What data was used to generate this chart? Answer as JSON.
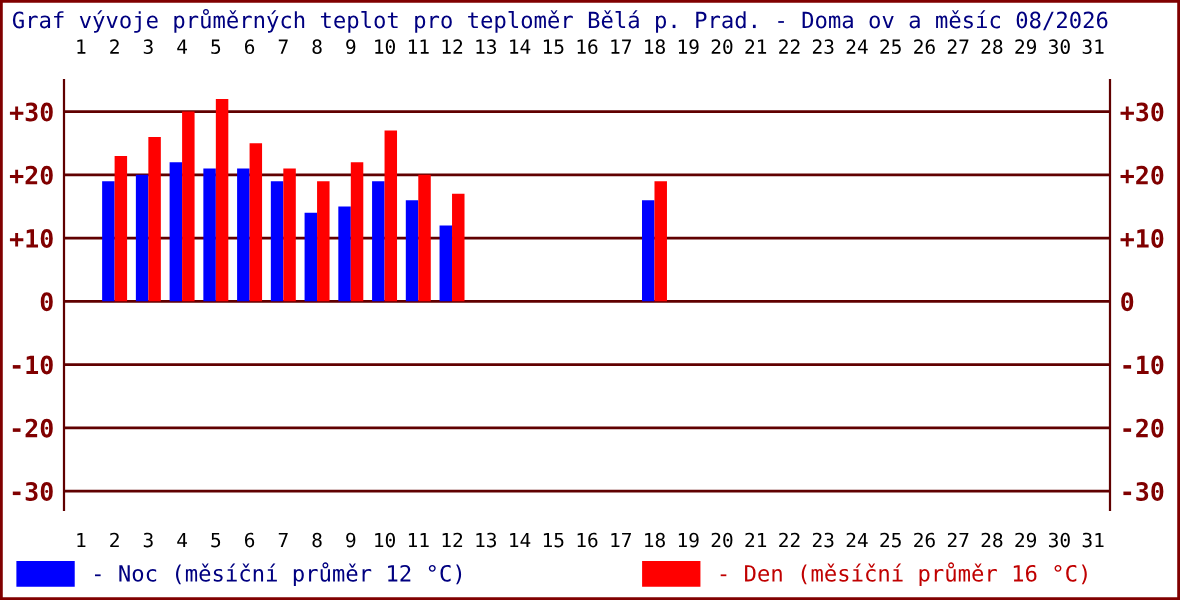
{
  "chart_data": {
    "type": "bar",
    "title": "Graf vývoje průměrných teplot pro teploměr Bělá p. Prad. - Doma ov a měsíc 08/2026",
    "categories": [
      "1",
      "2",
      "3",
      "4",
      "5",
      "6",
      "7",
      "8",
      "9",
      "10",
      "11",
      "12",
      "13",
      "14",
      "15",
      "16",
      "17",
      "18",
      "19",
      "20",
      "21",
      "22",
      "23",
      "24",
      "25",
      "26",
      "27",
      "28",
      "29",
      "30",
      "31"
    ],
    "series": [
      {
        "name": "- Noc (měsíční průměr 12 °C)",
        "color": "#0000ff",
        "values": [
          null,
          19,
          20,
          22,
          21,
          21,
          19,
          14,
          15,
          19,
          16,
          12,
          null,
          null,
          null,
          null,
          null,
          16,
          null,
          null,
          null,
          null,
          null,
          null,
          null,
          null,
          null,
          null,
          null,
          null,
          null
        ]
      },
      {
        "name": "- Den (měsíční průměr 16 °C)",
        "color": "#ff0000",
        "values": [
          null,
          23,
          26,
          30,
          32,
          25,
          21,
          19,
          22,
          27,
          20,
          17,
          null,
          null,
          null,
          null,
          null,
          19,
          null,
          null,
          null,
          null,
          null,
          null,
          null,
          null,
          null,
          null,
          null,
          null,
          null
        ]
      }
    ],
    "ylim": [
      -33,
      35
    ],
    "yticks": [
      {
        "value": 30,
        "label": "+30"
      },
      {
        "value": 20,
        "label": "+20"
      },
      {
        "value": 10,
        "label": "+10"
      },
      0,
      -10,
      -20,
      -30
    ],
    "y2lim": [
      -33,
      35
    ],
    "y2ticks": [
      {
        "value": 30,
        "label": "+30"
      },
      {
        "value": 20,
        "label": "+20"
      },
      {
        "value": 10,
        "label": "+10"
      },
      0,
      -10,
      -20,
      -30
    ],
    "grid": "y",
    "legend": "bottom"
  }
}
